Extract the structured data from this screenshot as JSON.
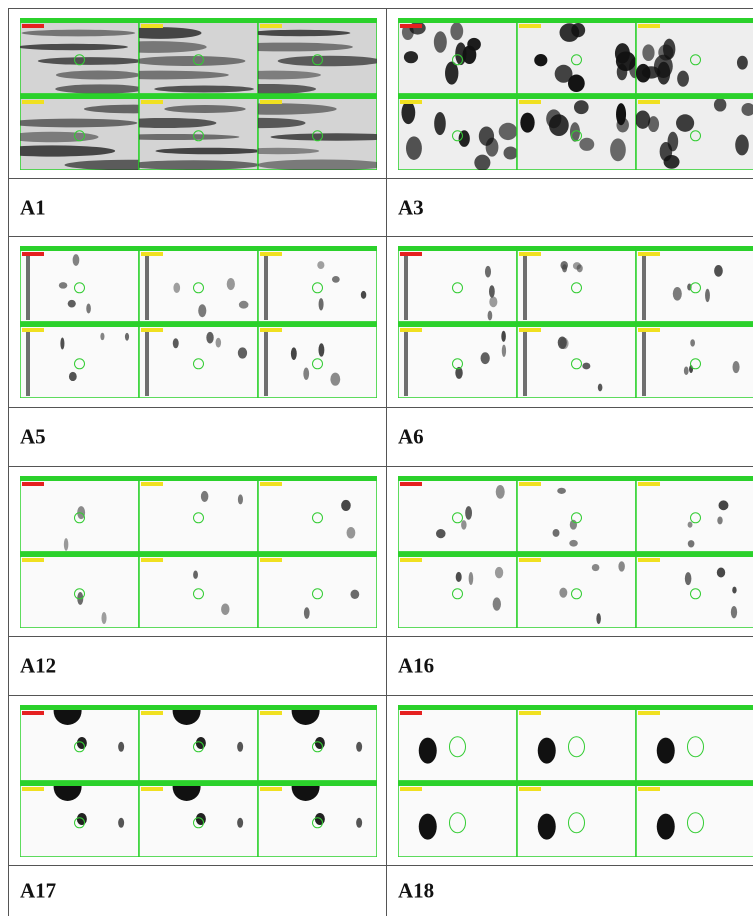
{
  "panels": [
    {
      "label": "A1"
    },
    {
      "label": "A3"
    },
    {
      "label": "A5"
    },
    {
      "label": "A6"
    },
    {
      "label": "A12"
    },
    {
      "label": "A16"
    },
    {
      "label": "A17"
    },
    {
      "label": "A18"
    }
  ]
}
